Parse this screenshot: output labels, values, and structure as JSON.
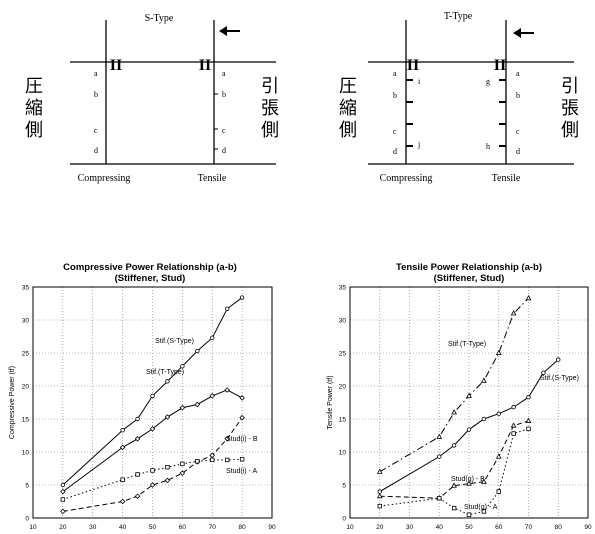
{
  "diagrams": [
    {
      "title": "S-Type",
      "left_kanji": [
        "圧",
        "縮",
        "側"
      ],
      "right_kanji": [
        "引",
        "張",
        "側"
      ],
      "section_mark": "II",
      "point_labels": [
        "a",
        "b",
        "c",
        "d"
      ],
      "stiffener_labels": [],
      "bottom_left": "Compressing",
      "bottom_right": "Tensile"
    },
    {
      "title": "T-Type",
      "left_kanji": [
        "圧",
        "縮",
        "側"
      ],
      "right_kanji": [
        "引",
        "張",
        "側"
      ],
      "section_mark": "II",
      "point_labels": [
        "a",
        "b",
        "c",
        "d"
      ],
      "stiffener_labels": [
        "i",
        "j",
        "g",
        "h"
      ],
      "bottom_left": "Compressing",
      "bottom_right": "Tensile"
    }
  ],
  "chart_data": [
    {
      "type": "line",
      "title": "Compressive Power Relationship (a-b)",
      "subtitle": "(Stiffener, Stud)",
      "ylabel": "Compressive Power (tf)",
      "xlabel": "",
      "xlim": [
        10,
        90
      ],
      "ylim": [
        0,
        35
      ],
      "xticks": [
        10,
        20,
        30,
        40,
        50,
        60,
        70,
        80,
        90
      ],
      "yticks": [
        0,
        5,
        10,
        15,
        20,
        25,
        30,
        35
      ],
      "grid": true,
      "series": [
        {
          "name": "Stif.(S-Type)",
          "style": "solid-circle",
          "x": [
            20,
            40,
            45,
            50,
            55,
            60,
            65,
            70,
            75,
            80
          ],
          "y": [
            5,
            13.3,
            15,
            18.5,
            20.7,
            23,
            25.3,
            27.3,
            31.7,
            33.4
          ]
        },
        {
          "name": "Stif.(T-Type)",
          "style": "solid-diamond",
          "x": [
            20,
            40,
            45,
            50,
            55,
            60,
            65,
            70,
            75,
            80
          ],
          "y": [
            4,
            10.7,
            12,
            13.5,
            15.3,
            16.7,
            17.2,
            18.5,
            19.4,
            18.2
          ]
        },
        {
          "name": "Stud(i) - B",
          "style": "dash-diamond",
          "x": [
            20,
            40,
            45,
            50,
            55,
            60,
            65,
            70,
            75,
            80
          ],
          "y": [
            1,
            2.5,
            3.3,
            5,
            5.7,
            6.8,
            8.5,
            9.5,
            12,
            15.2
          ]
        },
        {
          "name": "Stud(i) - A",
          "style": "dot-square",
          "x": [
            20,
            40,
            45,
            50,
            55,
            60,
            65,
            70,
            75,
            80
          ],
          "y": [
            2.8,
            5.8,
            6.6,
            7.2,
            7.7,
            8.2,
            8.6,
            8.8,
            8.8,
            8.9
          ]
        }
      ]
    },
    {
      "type": "line",
      "title": "Tensile Power Relationship (a-b)",
      "subtitle": "(Stiffener, Stud)",
      "ylabel": "Tensile Power (tf)",
      "xlabel": "",
      "xlim": [
        10,
        90
      ],
      "ylim": [
        0,
        35
      ],
      "xticks": [
        10,
        20,
        30,
        40,
        50,
        60,
        70,
        80,
        90
      ],
      "yticks": [
        0,
        5,
        10,
        15,
        20,
        25,
        30,
        35
      ],
      "grid": true,
      "series": [
        {
          "name": "Stif.(T-Type)",
          "style": "dashdot-triangle",
          "x": [
            20,
            40,
            45,
            50,
            55,
            60,
            65,
            70
          ],
          "y": [
            7,
            12.3,
            16,
            18.5,
            20.8,
            25,
            31,
            33.3
          ]
        },
        {
          "name": "Stif.(S-Type)",
          "style": "solid-circle",
          "x": [
            20,
            40,
            45,
            50,
            55,
            60,
            65,
            70,
            75,
            80
          ],
          "y": [
            4,
            9.3,
            11,
            13.4,
            15,
            15.8,
            16.8,
            18.3,
            22,
            24
          ]
        },
        {
          "name": "Stud(g) - B",
          "style": "dash-triangle",
          "x": [
            20,
            40,
            45,
            50,
            55,
            60,
            65,
            70
          ],
          "y": [
            3.3,
            3,
            4.9,
            5.2,
            5.5,
            9.3,
            14,
            14.7
          ]
        },
        {
          "name": "Stud(g) - A",
          "style": "dot-square",
          "x": [
            20,
            40,
            45,
            50,
            55,
            60,
            65,
            70
          ],
          "y": [
            1.8,
            3,
            1.5,
            0.5,
            1,
            4,
            12.8,
            13.5
          ]
        }
      ]
    }
  ]
}
